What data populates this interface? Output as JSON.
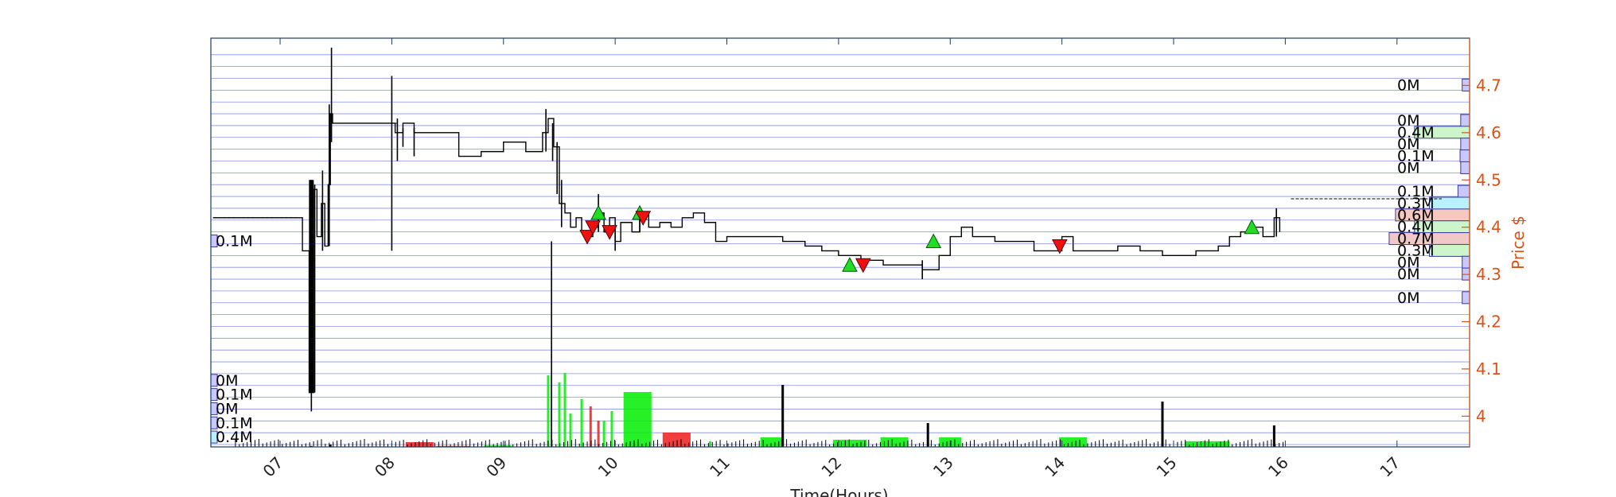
{
  "chart_data": {
    "type": "line",
    "xlabel": "Time(Hours)",
    "ylabel": "Price $",
    "x_ticks": [
      "07",
      "08",
      "09",
      "10",
      "11",
      "12",
      "13",
      "14",
      "15",
      "16",
      "17"
    ],
    "y_ticks": [
      4,
      4.1,
      4.2,
      4.3,
      4.4,
      4.5,
      4.6,
      4.7
    ],
    "xlim": [
      6.38,
      17.65
    ],
    "ylim": [
      3.935,
      4.8
    ],
    "grid": "horizontal price levels",
    "colors": {
      "frame": "#1a3b66",
      "grid": "#5b6fe8",
      "right_axis": "#d95319",
      "price": "#000000",
      "volume_up": "#00ee00",
      "volume_down": "#ee1c1c",
      "buy_marker": "#22dd22",
      "sell_marker": "#ee1111"
    },
    "price_series": [
      [
        6.4,
        4.42
      ],
      [
        7.15,
        4.42
      ],
      [
        7.2,
        4.35
      ],
      [
        7.26,
        4.05
      ],
      [
        7.3,
        4.48
      ],
      [
        7.33,
        4.38
      ],
      [
        7.37,
        4.45
      ],
      [
        7.4,
        4.36
      ],
      [
        7.43,
        4.49
      ],
      [
        7.45,
        4.64
      ],
      [
        7.47,
        4.62
      ],
      [
        8.0,
        4.62
      ],
      [
        8.03,
        4.6
      ],
      [
        8.1,
        4.62
      ],
      [
        8.2,
        4.6
      ],
      [
        8.55,
        4.6
      ],
      [
        8.6,
        4.55
      ],
      [
        8.8,
        4.56
      ],
      [
        9.0,
        4.58
      ],
      [
        9.2,
        4.56
      ],
      [
        9.35,
        4.6
      ],
      [
        9.4,
        4.63
      ],
      [
        9.45,
        4.57
      ],
      [
        9.5,
        4.45
      ],
      [
        9.55,
        4.43
      ],
      [
        9.6,
        4.4
      ],
      [
        9.65,
        4.42
      ],
      [
        9.7,
        4.39
      ],
      [
        9.75,
        4.38
      ],
      [
        9.8,
        4.4
      ],
      [
        9.85,
        4.43
      ],
      [
        9.9,
        4.39
      ],
      [
        9.95,
        4.42
      ],
      [
        10.0,
        4.37
      ],
      [
        10.05,
        4.41
      ],
      [
        10.15,
        4.39
      ],
      [
        10.22,
        4.43
      ],
      [
        10.3,
        4.4
      ],
      [
        10.4,
        4.41
      ],
      [
        10.5,
        4.4
      ],
      [
        10.6,
        4.42
      ],
      [
        10.7,
        4.43
      ],
      [
        10.8,
        4.41
      ],
      [
        10.9,
        4.37
      ],
      [
        11.0,
        4.38
      ],
      [
        11.2,
        4.38
      ],
      [
        11.4,
        4.38
      ],
      [
        11.5,
        4.37
      ],
      [
        11.7,
        4.36
      ],
      [
        11.85,
        4.35
      ],
      [
        12.0,
        4.34
      ],
      [
        12.2,
        4.33
      ],
      [
        12.4,
        4.32
      ],
      [
        12.6,
        4.32
      ],
      [
        12.75,
        4.31
      ],
      [
        12.9,
        4.34
      ],
      [
        13.0,
        4.38
      ],
      [
        13.1,
        4.4
      ],
      [
        13.2,
        4.38
      ],
      [
        13.4,
        4.37
      ],
      [
        13.6,
        4.37
      ],
      [
        13.75,
        4.35
      ],
      [
        13.9,
        4.35
      ],
      [
        14.0,
        4.38
      ],
      [
        14.1,
        4.35
      ],
      [
        14.3,
        4.35
      ],
      [
        14.5,
        4.36
      ],
      [
        14.7,
        4.35
      ],
      [
        14.9,
        4.34
      ],
      [
        15.0,
        4.34
      ],
      [
        15.2,
        4.35
      ],
      [
        15.4,
        4.36
      ],
      [
        15.5,
        4.38
      ],
      [
        15.6,
        4.39
      ],
      [
        15.7,
        4.4
      ],
      [
        15.8,
        4.38
      ],
      [
        15.9,
        4.42
      ],
      [
        15.95,
        4.39
      ]
    ],
    "price_wicks": [
      [
        7.28,
        4.01,
        4.5
      ],
      [
        7.31,
        4.05,
        4.49
      ],
      [
        7.38,
        4.35,
        4.52
      ],
      [
        7.44,
        4.36,
        4.66
      ],
      [
        7.46,
        4.58,
        4.78
      ],
      [
        8.0,
        4.35,
        4.72
      ],
      [
        8.05,
        4.54,
        4.63
      ],
      [
        8.1,
        4.57,
        4.61
      ],
      [
        8.2,
        4.55,
        4.61
      ],
      [
        9.38,
        4.56,
        4.65
      ],
      [
        9.44,
        4.54,
        4.62
      ],
      [
        9.48,
        4.47,
        4.58
      ],
      [
        9.52,
        4.4,
        4.5
      ],
      [
        9.85,
        4.39,
        4.47
      ],
      [
        10.0,
        4.35,
        4.4
      ],
      [
        10.22,
        4.39,
        4.44
      ],
      [
        12.75,
        4.29,
        4.33
      ],
      [
        15.92,
        4.38,
        4.44
      ]
    ],
    "flat_levels": [
      {
        "x": [
          6.4,
          7.15
        ],
        "y": 4.42
      },
      {
        "x": [
          7.47,
          8.05
        ],
        "y": 4.62
      },
      {
        "x": [
          16.05,
          17.4
        ],
        "y": 4.46
      }
    ],
    "buy_signals": [
      [
        9.85,
        4.43
      ],
      [
        10.22,
        4.43
      ],
      [
        12.1,
        4.32
      ],
      [
        12.85,
        4.37
      ],
      [
        15.7,
        4.4
      ]
    ],
    "sell_signals": [
      [
        9.75,
        4.38
      ],
      [
        9.8,
        4.4
      ],
      [
        9.95,
        4.39
      ],
      [
        10.25,
        4.42
      ],
      [
        12.22,
        4.32
      ],
      [
        13.98,
        4.36
      ]
    ],
    "volume_bars": [
      {
        "x": 7.28,
        "v": 0.02,
        "c": "k"
      },
      {
        "x": 7.45,
        "v": 0.05,
        "c": "k"
      },
      {
        "x": 8.25,
        "v": 0.1,
        "c": "r",
        "w": 0.25
      },
      {
        "x": 8.55,
        "v": 0.02,
        "c": "r",
        "w": 0.3
      },
      {
        "x": 8.95,
        "v": 0.03,
        "c": "g",
        "w": 0.25
      },
      {
        "x": 9.4,
        "v": 1.5,
        "c": "g"
      },
      {
        "x": 9.5,
        "v": 1.35,
        "c": "g"
      },
      {
        "x": 9.55,
        "v": 1.55,
        "c": "g"
      },
      {
        "x": 9.6,
        "v": 0.7,
        "c": "g"
      },
      {
        "x": 9.7,
        "v": 1.0,
        "c": "g"
      },
      {
        "x": 9.78,
        "v": 0.85,
        "c": "r"
      },
      {
        "x": 9.85,
        "v": 0.55,
        "c": "r"
      },
      {
        "x": 9.9,
        "v": 0.55,
        "c": "g"
      },
      {
        "x": 9.97,
        "v": 0.75,
        "c": "g"
      },
      {
        "x": 10.2,
        "v": 1.15,
        "c": "g",
        "w": 0.25
      },
      {
        "x": 10.55,
        "v": 0.3,
        "c": "r",
        "w": 0.25
      },
      {
        "x": 10.85,
        "v": 0.12,
        "c": "g"
      },
      {
        "x": 11.4,
        "v": 0.2,
        "c": "g",
        "w": 0.2
      },
      {
        "x": 11.5,
        "v": 1.3,
        "c": "k"
      },
      {
        "x": 12.1,
        "v": 0.15,
        "c": "g",
        "w": 0.3
      },
      {
        "x": 12.5,
        "v": 0.2,
        "c": "g",
        "w": 0.25
      },
      {
        "x": 12.8,
        "v": 0.5,
        "c": "k"
      },
      {
        "x": 13.0,
        "v": 0.2,
        "c": "g",
        "w": 0.2
      },
      {
        "x": 14.1,
        "v": 0.2,
        "c": "g",
        "w": 0.25
      },
      {
        "x": 14.9,
        "v": 0.95,
        "c": "k"
      },
      {
        "x": 15.3,
        "v": 0.12,
        "c": "g",
        "w": 0.4
      },
      {
        "x": 15.9,
        "v": 0.45,
        "c": "k"
      }
    ],
    "volume_profile": [
      {
        "price": 4.7,
        "label": "0M",
        "len": 0.35,
        "color": "#c8c8ff"
      },
      {
        "price": 4.625,
        "label": "0M",
        "len": 0.42,
        "color": "#c8c8ff"
      },
      {
        "price": 4.6,
        "label": "0.4M",
        "len": 2.6,
        "color": "#ccf5cc"
      },
      {
        "price": 4.575,
        "label": "0M",
        "len": 0.42,
        "color": "#c8c8ff"
      },
      {
        "price": 4.55,
        "label": "0.1M",
        "len": 0.45,
        "color": "#c8c8ff"
      },
      {
        "price": 4.525,
        "label": "0M",
        "len": 0.42,
        "color": "#c8c8ff"
      },
      {
        "price": 4.475,
        "label": "0.1M",
        "len": 0.55,
        "color": "#c8c8ff"
      },
      {
        "price": 4.45,
        "label": "0.3M",
        "len": 1.9,
        "color": "#b8f0ff"
      },
      {
        "price": 4.425,
        "label": "0.6M",
        "len": 3.5,
        "color": "#f7c8c0"
      },
      {
        "price": 4.4,
        "label": "0.4M",
        "len": 2.6,
        "color": "#ccf5cc"
      },
      {
        "price": 4.375,
        "label": "0.7M",
        "len": 3.8,
        "color": "#f0c8c8"
      },
      {
        "price": 4.35,
        "label": "0.3M",
        "len": 1.9,
        "color": "#ccf5cc"
      },
      {
        "price": 4.325,
        "label": "0M",
        "len": 0.35,
        "color": "#c8c8ff"
      },
      {
        "price": 4.3,
        "label": "0M",
        "len": 0.35,
        "color": "#c8c8ff"
      },
      {
        "price": 4.25,
        "label": "0M",
        "len": 0.35,
        "color": "#c8c8ff"
      }
    ],
    "left_volume": [
      {
        "price": 4.37,
        "label": "0.1M",
        "color": "#c8c8ff"
      },
      {
        "price": 4.075,
        "label": "0M",
        "color": "#c8c8ff"
      },
      {
        "price": 4.045,
        "label": "0.1M",
        "color": "#c8c8ff"
      },
      {
        "price": 4.015,
        "label": "0M",
        "color": "#c8c8ff"
      },
      {
        "price": 3.985,
        "label": "0.1M",
        "color": "#c8c8ff"
      },
      {
        "price": 3.955,
        "label": "0.4M",
        "color": "#b8f0ff"
      }
    ]
  }
}
